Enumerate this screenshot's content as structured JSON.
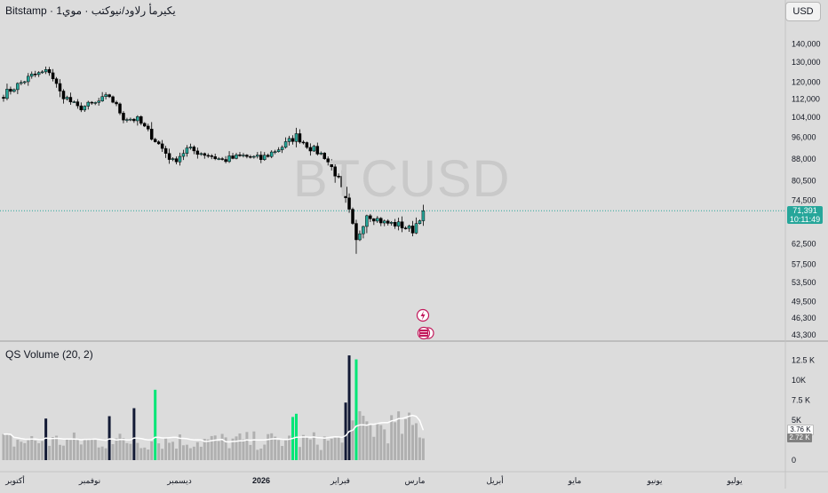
{
  "header": {
    "symbol_line": "Bitstamp · يكيرمأ رلاود/نيوكتب · موي1",
    "symbol": "Bitstamp",
    "description": "يكيرمأ رلاود/نيوكتب · موي1"
  },
  "currency_button": "USD",
  "watermark": "BTCUSD",
  "last_price": "71,391",
  "countdown": "10:11:49",
  "indicator": {
    "title": "QS Volume (20, 2)",
    "badge_values": [
      "3.76 K",
      "2.72 K"
    ]
  },
  "colors": {
    "up": "#26a69a",
    "down": "#000000",
    "volume_up": "#00e676",
    "volume_spike_down": "#131a35",
    "volume_normal": "#b0b0b0",
    "volume_ma": "#ffffff",
    "price_line": "#26a69a"
  },
  "icons": [
    "lightning-icon",
    "flag-stack-icon"
  ],
  "chart_data": [
    {
      "type": "candlestick",
      "xlabel": "",
      "ylabel": "",
      "y_ticks": [
        "140,000",
        "130,000",
        "120,000",
        "112,000",
        "104,000",
        "96,000",
        "88,000",
        "80,500",
        "74,500",
        "71,391",
        "62,500",
        "57,500",
        "53,500",
        "49,500",
        "46,300",
        "43,300"
      ],
      "y_tick_values": [
        140000,
        130000,
        120000,
        112000,
        104000,
        96000,
        88000,
        80500,
        74500,
        71391,
        62500,
        57500,
        53500,
        49500,
        46300,
        43300
      ],
      "ylim": [
        42500,
        150000
      ],
      "y_scale": "log",
      "x_ticks": [
        "أكتوبر",
        "نوفمبر",
        "ديسمبر",
        "2026",
        "فبراير",
        "مارس",
        "أبريل",
        "مايو",
        "يونيو",
        "يوليو"
      ],
      "close_anchors": [
        {
          "bar": 0,
          "close": 114000
        },
        {
          "bar": 8,
          "close": 123000
        },
        {
          "bar": 13,
          "close": 125500
        },
        {
          "bar": 16,
          "close": 115000
        },
        {
          "bar": 21,
          "close": 108000
        },
        {
          "bar": 26,
          "close": 110000
        },
        {
          "bar": 30,
          "close": 113500
        },
        {
          "bar": 34,
          "close": 104000
        },
        {
          "bar": 38,
          "close": 103000
        },
        {
          "bar": 42,
          "close": 96500
        },
        {
          "bar": 48,
          "close": 87000
        },
        {
          "bar": 52,
          "close": 91500
        },
        {
          "bar": 58,
          "close": 89500
        },
        {
          "bar": 62,
          "close": 87500
        },
        {
          "bar": 68,
          "close": 89000
        },
        {
          "bar": 73,
          "close": 88000
        },
        {
          "bar": 79,
          "close": 92500
        },
        {
          "bar": 83,
          "close": 96500
        },
        {
          "bar": 87,
          "close": 92000
        },
        {
          "bar": 91,
          "close": 89000
        },
        {
          "bar": 95,
          "close": 81000
        },
        {
          "bar": 98,
          "close": 71000
        },
        {
          "bar": 100,
          "close": 63000
        },
        {
          "bar": 103,
          "close": 70500
        },
        {
          "bar": 108,
          "close": 68000
        },
        {
          "bar": 112,
          "close": 67500
        },
        {
          "bar": 116,
          "close": 66000
        },
        {
          "bar": 119,
          "close": 71391
        }
      ],
      "bar_count": 120,
      "last_close": 71391
    },
    {
      "type": "bar",
      "title": "QS Volume (20, 2)",
      "y_ticks": [
        "12.5 K",
        "10K",
        "7.5 K",
        "5K",
        "0"
      ],
      "y_tick_values": [
        12500,
        10000,
        7500,
        5000,
        0
      ],
      "ylim": [
        0,
        14000
      ],
      "last_volume_ma": 3760,
      "last_volume": 2720,
      "spike_bars_up": [
        43,
        82,
        83,
        100
      ],
      "spike_bars_down": [
        12,
        30,
        37,
        97,
        98
      ],
      "spike_values": {
        "12": 5200,
        "30": 5500,
        "37": 6500,
        "43": 8800,
        "82": 5400,
        "83": 5800,
        "97": 7200,
        "98": 13100,
        "100": 12600
      }
    }
  ]
}
